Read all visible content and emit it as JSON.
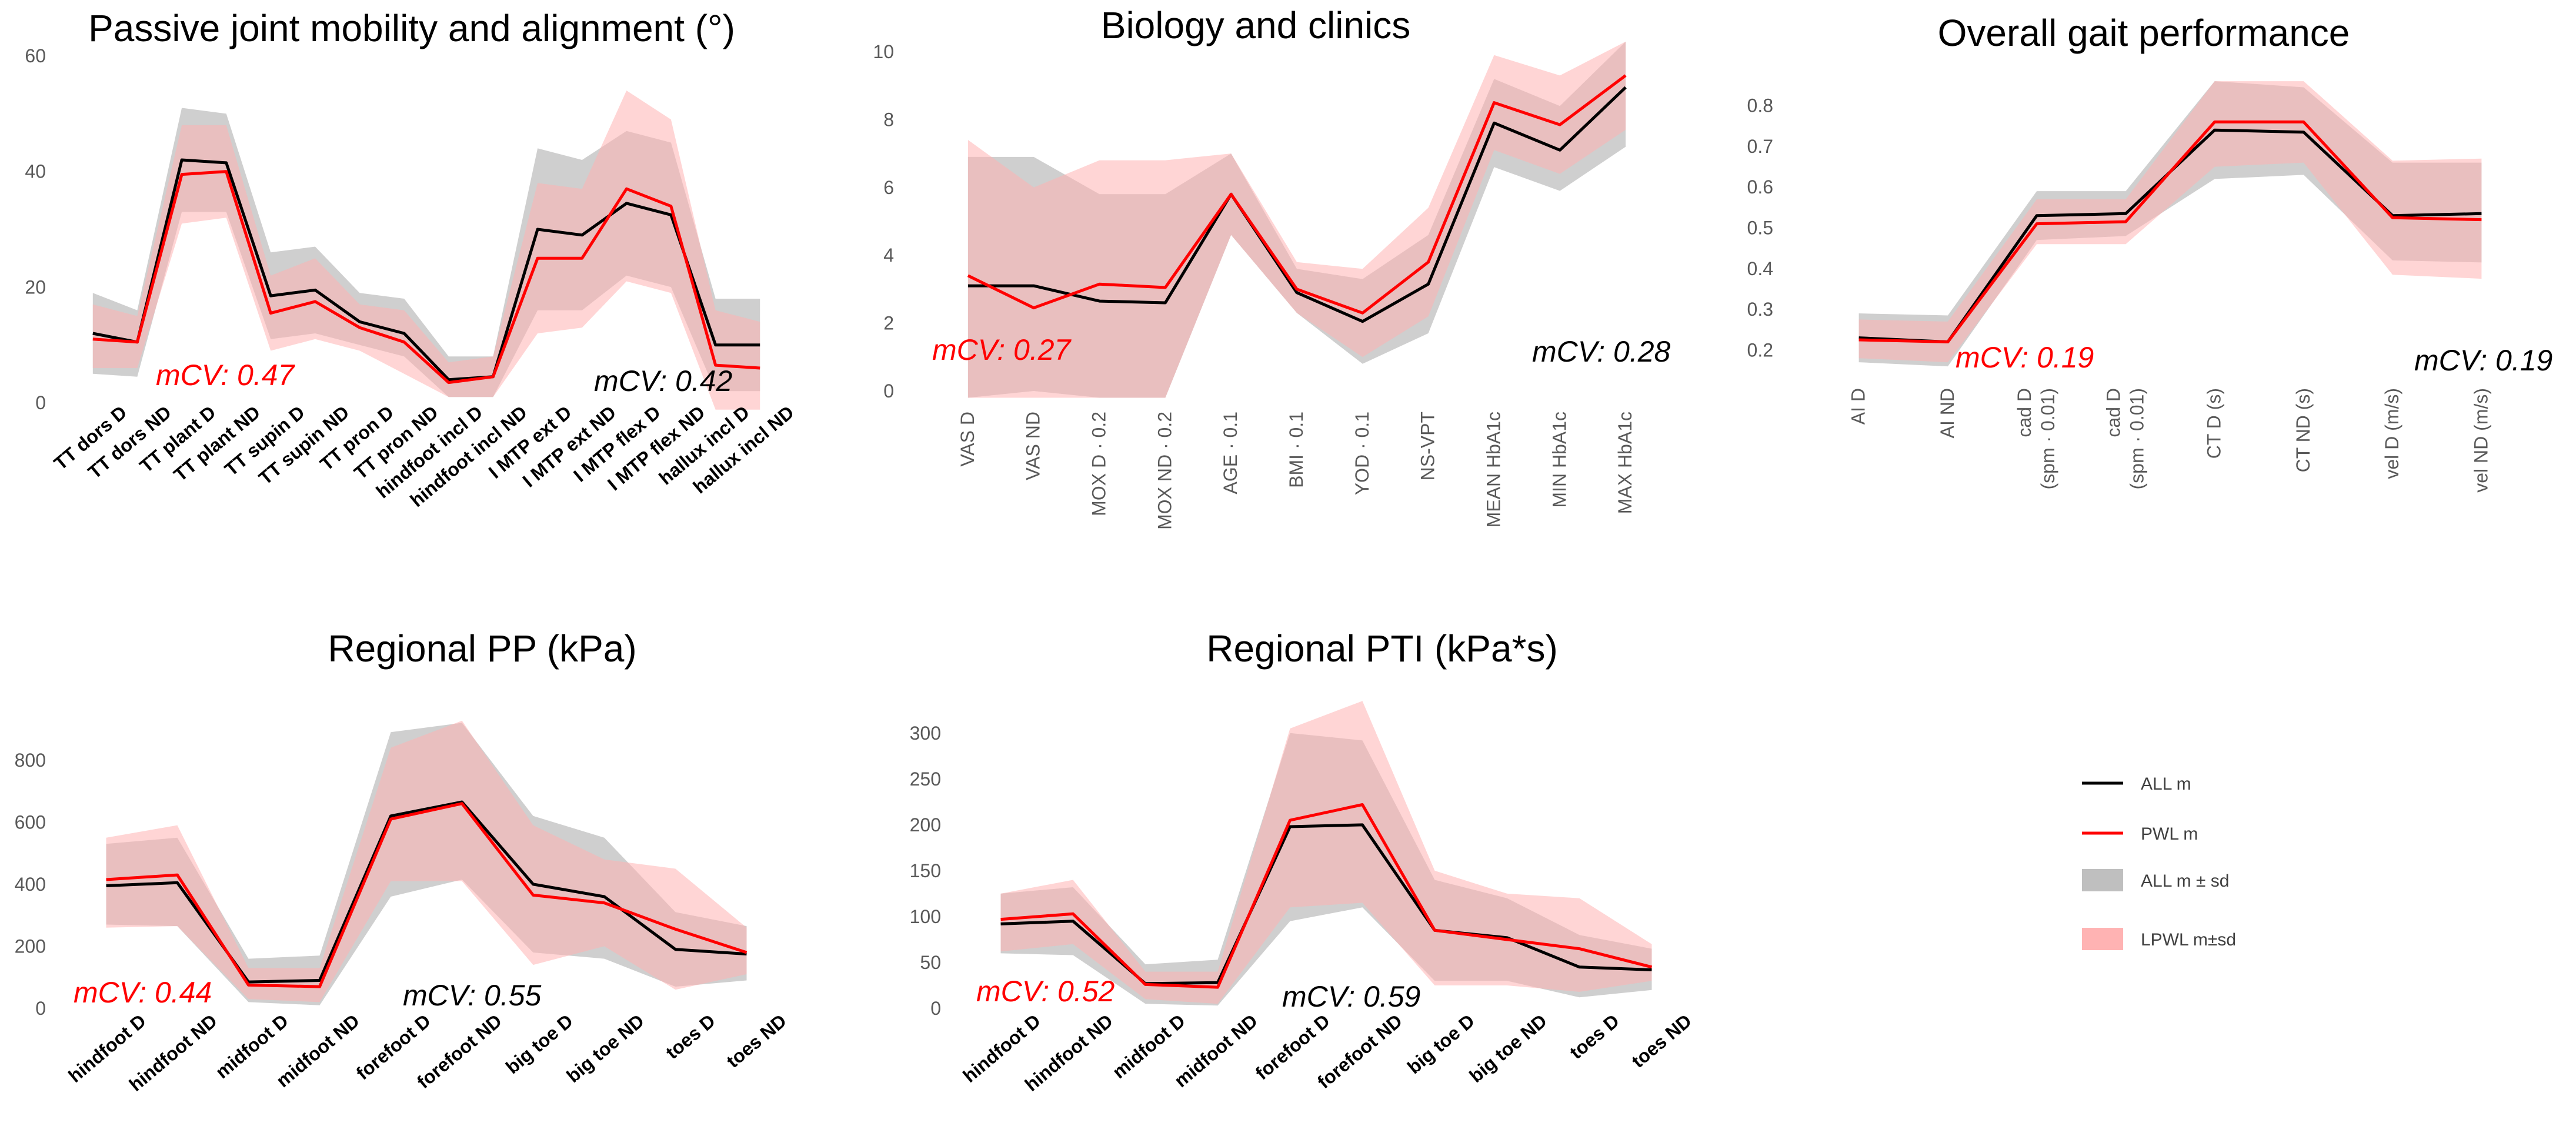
{
  "legend": {
    "all_m": "ALL m",
    "pwl_m": "PWL m",
    "all_sd": "ALL m ± sd",
    "lpwl_sd": "LPWL m±sd"
  },
  "colors": {
    "all_line": "#000000",
    "pwl_line": "#ff0000",
    "all_band": "#bfbfbf",
    "pwl_band": "#ffb3b3",
    "mcv_red": "#ff0000",
    "mcv_black": "#000000"
  },
  "chart_data": [
    {
      "id": "c1",
      "type": "line",
      "title": "Passive joint mobility and alignment (°)",
      "categories": [
        "TT dors D",
        "TT dors ND",
        "TT plant D",
        "TT plant ND",
        "TT supin D",
        "TT supin ND",
        "TT pron D",
        "TT pron ND",
        "hindfoot incl D",
        "hindfoot incl ND",
        "I MTP ext D",
        "I MTP ext ND",
        "I MTP flex D",
        "I MTP flex ND",
        "hallux incl D",
        "hallux incl ND"
      ],
      "ylim": [
        0,
        60
      ],
      "yticks": [
        0,
        20,
        40,
        60
      ],
      "ytick_labels": [
        "0",
        "20",
        "40",
        "60"
      ],
      "series": [
        {
          "name": "ALL m",
          "values": [
            12,
            10.5,
            42,
            41.5,
            18.5,
            19.5,
            14,
            12,
            4,
            4.5,
            30,
            29,
            34.5,
            32.5,
            10,
            10
          ]
        },
        {
          "name": "PWL m",
          "values": [
            11,
            10.5,
            39.5,
            40,
            15.5,
            17.5,
            13,
            10.5,
            3.5,
            4.5,
            25,
            25,
            37,
            34,
            6.5,
            6
          ]
        }
      ],
      "bands": [
        {
          "name": "ALL m ± sd",
          "lower": [
            5,
            4.5,
            33,
            33,
            11,
            12,
            10,
            8,
            1,
            1,
            16,
            16,
            22,
            20,
            2,
            2
          ],
          "upper": [
            19,
            16,
            51,
            50,
            26,
            27,
            19,
            18,
            8,
            8,
            44,
            42,
            47,
            45,
            18,
            18
          ]
        },
        {
          "name": "LPWL m±sd",
          "lower": [
            6,
            6,
            31,
            32,
            9,
            11,
            9,
            5,
            1,
            1,
            12,
            13,
            21,
            19,
            -2,
            -2
          ],
          "upper": [
            17,
            15,
            48,
            48,
            22,
            25,
            17,
            16,
            7,
            8,
            38,
            37,
            54,
            49,
            16,
            14
          ]
        }
      ],
      "mcv": [
        {
          "text": "mCV: 0.47",
          "color": "red"
        },
        {
          "text": "mCV: 0.42",
          "color": "black"
        }
      ]
    },
    {
      "id": "c2",
      "type": "line",
      "title": "Biology and clinics",
      "categories": [
        "VAS D",
        "VAS ND",
        "MOX D · 0.2",
        "MOX ND · 0.2",
        "AGE · 0.1",
        "BMI · 0.1",
        "YOD · 0.1",
        "NS-VPT",
        "MEAN HbA1c",
        "MIN HbA1c",
        "MAX HbA1c"
      ],
      "ylim": [
        0,
        10
      ],
      "yticks": [
        0,
        2,
        4,
        6,
        8,
        10
      ],
      "ytick_labels": [
        "0",
        "2",
        "4",
        "6",
        "8",
        "10"
      ],
      "series": [
        {
          "name": "ALL m",
          "values": [
            3.1,
            3.1,
            2.65,
            2.6,
            5.8,
            2.9,
            2.05,
            3.15,
            7.9,
            7.1,
            8.95
          ]
        },
        {
          "name": "PWL m",
          "values": [
            3.4,
            2.45,
            3.15,
            3.05,
            5.8,
            3.0,
            2.3,
            3.8,
            8.5,
            7.85,
            9.3
          ]
        }
      ],
      "bands": [
        {
          "name": "ALL m ± sd",
          "lower": [
            -0.5,
            0,
            -0.5,
            -0.5,
            4.6,
            2.3,
            0.8,
            1.7,
            6.6,
            5.9,
            7.2
          ],
          "upper": [
            6.9,
            6.9,
            5.8,
            5.8,
            7.0,
            3.6,
            3.3,
            4.6,
            9.2,
            8.4,
            10.7
          ]
        },
        {
          "name": "LPWL m±sd",
          "lower": [
            -0.5,
            -1.0,
            -0.5,
            -0.5,
            4.6,
            2.3,
            1.0,
            2.2,
            7.1,
            6.4,
            7.7
          ],
          "upper": [
            7.4,
            6.0,
            6.8,
            6.8,
            7.0,
            3.8,
            3.6,
            5.4,
            9.9,
            9.3,
            10.9
          ]
        }
      ],
      "mcv": [
        {
          "text": "mCV: 0.27",
          "color": "red"
        },
        {
          "text": "mCV: 0.28",
          "color": "black"
        }
      ]
    },
    {
      "id": "c3",
      "type": "line",
      "title": "Overall gait performance",
      "categories": [
        "AI D",
        "AI ND",
        "cad D|(spm · 0.01)",
        "cad D|(spm · 0.01)",
        "CT D (s)",
        "CT ND (s)",
        "vel D (m/s)",
        "vel ND (m/s)"
      ],
      "ylim": [
        0.15,
        0.85
      ],
      "yticks": [
        0.2,
        0.3,
        0.4,
        0.5,
        0.6,
        0.7,
        0.8
      ],
      "ytick_labels": [
        "0.2",
        "0.3",
        "0.4",
        "0.5",
        "0.6",
        "0.7",
        "0.8"
      ],
      "series": [
        {
          "name": "ALL m",
          "values": [
            0.23,
            0.22,
            0.53,
            0.535,
            0.74,
            0.735,
            0.53,
            0.535
          ]
        },
        {
          "name": "PWL m",
          "values": [
            0.225,
            0.22,
            0.51,
            0.515,
            0.76,
            0.76,
            0.525,
            0.52
          ]
        }
      ],
      "bands": [
        {
          "name": "ALL m ± sd",
          "lower": [
            0.17,
            0.16,
            0.47,
            0.48,
            0.62,
            0.63,
            0.42,
            0.415
          ],
          "upper": [
            0.29,
            0.285,
            0.59,
            0.59,
            0.86,
            0.845,
            0.66,
            0.66
          ]
        },
        {
          "name": "LPWL m±sd",
          "lower": [
            0.18,
            0.17,
            0.46,
            0.46,
            0.65,
            0.66,
            0.385,
            0.375
          ],
          "upper": [
            0.275,
            0.27,
            0.57,
            0.57,
            0.86,
            0.86,
            0.665,
            0.67
          ]
        }
      ],
      "mcv": [
        {
          "text": "mCV: 0.19",
          "color": "red"
        },
        {
          "text": "mCV: 0.19",
          "color": "black"
        }
      ]
    },
    {
      "id": "c4",
      "type": "line",
      "title": "Regional PP (kPa)",
      "categories": [
        "hindfoot D",
        "hindfoot ND",
        "midfoot D",
        "midfoot ND",
        "forefoot D",
        "forefoot ND",
        "big toe D",
        "big toe ND",
        "toes D",
        "toes ND"
      ],
      "ylim": [
        0,
        900
      ],
      "yticks": [
        0,
        200,
        400,
        600,
        800
      ],
      "ytick_labels": [
        "0",
        "200",
        "400",
        "600",
        "800"
      ],
      "series": [
        {
          "name": "ALL m",
          "values": [
            395,
            405,
            85,
            90,
            620,
            665,
            400,
            360,
            190,
            175
          ]
        },
        {
          "name": "PWL m",
          "values": [
            415,
            430,
            75,
            70,
            610,
            660,
            365,
            340,
            255,
            180
          ]
        }
      ],
      "bands": [
        {
          "name": "ALL m ± sd",
          "lower": [
            270,
            265,
            20,
            10,
            360,
            415,
            180,
            160,
            70,
            90
          ],
          "upper": [
            530,
            550,
            160,
            170,
            890,
            920,
            620,
            550,
            310,
            265
          ]
        },
        {
          "name": "LPWL m±sd",
          "lower": [
            260,
            265,
            30,
            20,
            410,
            410,
            140,
            200,
            60,
            110
          ],
          "upper": [
            550,
            590,
            130,
            130,
            840,
            930,
            590,
            480,
            450,
            260
          ]
        }
      ],
      "mcv": [
        {
          "text": "mCV: 0.44",
          "color": "red"
        },
        {
          "text": "mCV: 0.55",
          "color": "black"
        }
      ]
    },
    {
      "id": "c5",
      "type": "line",
      "title": "Regional PTI (kPa*s)",
      "categories": [
        "hindfoot D",
        "hindfoot ND",
        "midfoot D",
        "midfoot ND",
        "forefoot D",
        "forefoot ND",
        "big toe D",
        "big toe ND",
        "toes D",
        "toes ND"
      ],
      "ylim": [
        0,
        330
      ],
      "yticks": [
        0,
        50,
        100,
        150,
        200,
        250,
        300
      ],
      "ytick_labels": [
        "0",
        "50",
        "100",
        "150",
        "200",
        "250",
        "300"
      ],
      "series": [
        {
          "name": "ALL m",
          "values": [
            92,
            95,
            27,
            28,
            198,
            200,
            85,
            77,
            45,
            42
          ]
        },
        {
          "name": "PWL m",
          "values": [
            97,
            103,
            26,
            23,
            205,
            222,
            85,
            75,
            65,
            45
          ]
        }
      ],
      "bands": [
        {
          "name": "ALL m ± sd",
          "lower": [
            60,
            58,
            5,
            3,
            95,
            110,
            30,
            30,
            12,
            20
          ],
          "upper": [
            125,
            132,
            48,
            53,
            300,
            292,
            140,
            120,
            80,
            65
          ]
        },
        {
          "name": "LPWL m±sd",
          "lower": [
            62,
            70,
            10,
            5,
            110,
            115,
            25,
            25,
            18,
            30
          ],
          "upper": [
            125,
            140,
            40,
            40,
            305,
            335,
            150,
            125,
            120,
            70
          ]
        }
      ],
      "mcv": [
        {
          "text": "mCV: 0.52",
          "color": "red"
        },
        {
          "text": "mCV: 0.59",
          "color": "black"
        }
      ]
    }
  ]
}
